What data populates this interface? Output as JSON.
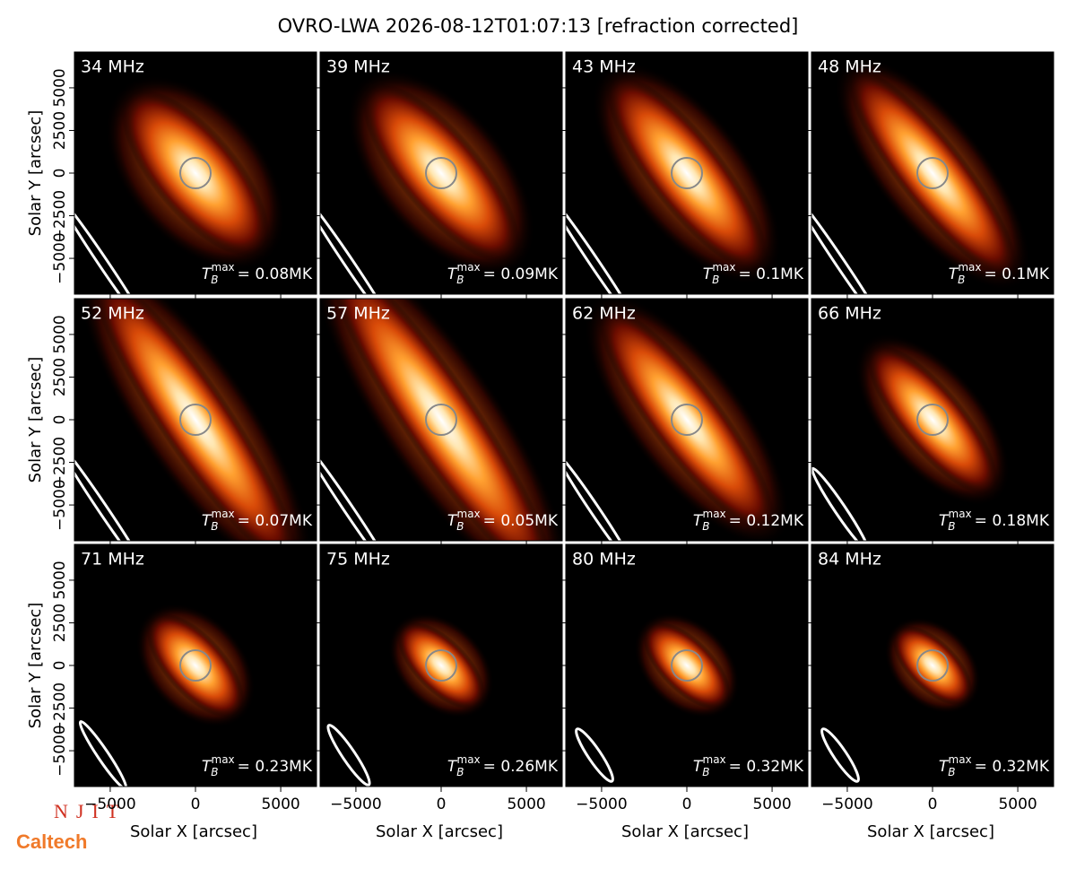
{
  "chart_data": {
    "type": "image-grid",
    "title": "OVRO-LWA 2026-08-12T01:07:13 [refraction corrected]",
    "xlabel": "Solar X [arcsec]",
    "ylabel": "Solar Y [arcsec]",
    "xlim": [
      -7100,
      7100
    ],
    "ylim": [
      -7100,
      7100
    ],
    "xticks": [
      {
        "value": -5000,
        "label": "−5000"
      },
      0,
      5000
    ],
    "yticks": [
      {
        "value": -5000,
        "label": "−5000"
      },
      {
        "value": -2500,
        "label": "−2500"
      },
      0,
      2500,
      5000
    ],
    "tb_symbol": {
      "base": "T",
      "sub": "B",
      "sup": "max"
    },
    "panels": [
      {
        "label": "34 MHz",
        "tmax": "= 0.08MK"
      },
      {
        "label": "39 MHz",
        "tmax": "= 0.09MK"
      },
      {
        "label": "43 MHz",
        "tmax": "= 0.1MK"
      },
      {
        "label": "48 MHz",
        "tmax": "= 0.1MK"
      },
      {
        "label": "52 MHz",
        "tmax": "= 0.07MK"
      },
      {
        "label": "57 MHz",
        "tmax": "= 0.05MK"
      },
      {
        "label": "62 MHz",
        "tmax": "= 0.12MK"
      },
      {
        "label": "66 MHz",
        "tmax": "= 0.18MK"
      },
      {
        "label": "71 MHz",
        "tmax": "= 0.23MK"
      },
      {
        "label": "75 MHz",
        "tmax": "= 0.26MK"
      },
      {
        "label": "80 MHz",
        "tmax": "= 0.32MK"
      },
      {
        "label": "84 MHz",
        "tmax": "= 0.32MK"
      }
    ],
    "logos": {
      "top": "NJIT",
      "bottom": "Caltech"
    }
  }
}
